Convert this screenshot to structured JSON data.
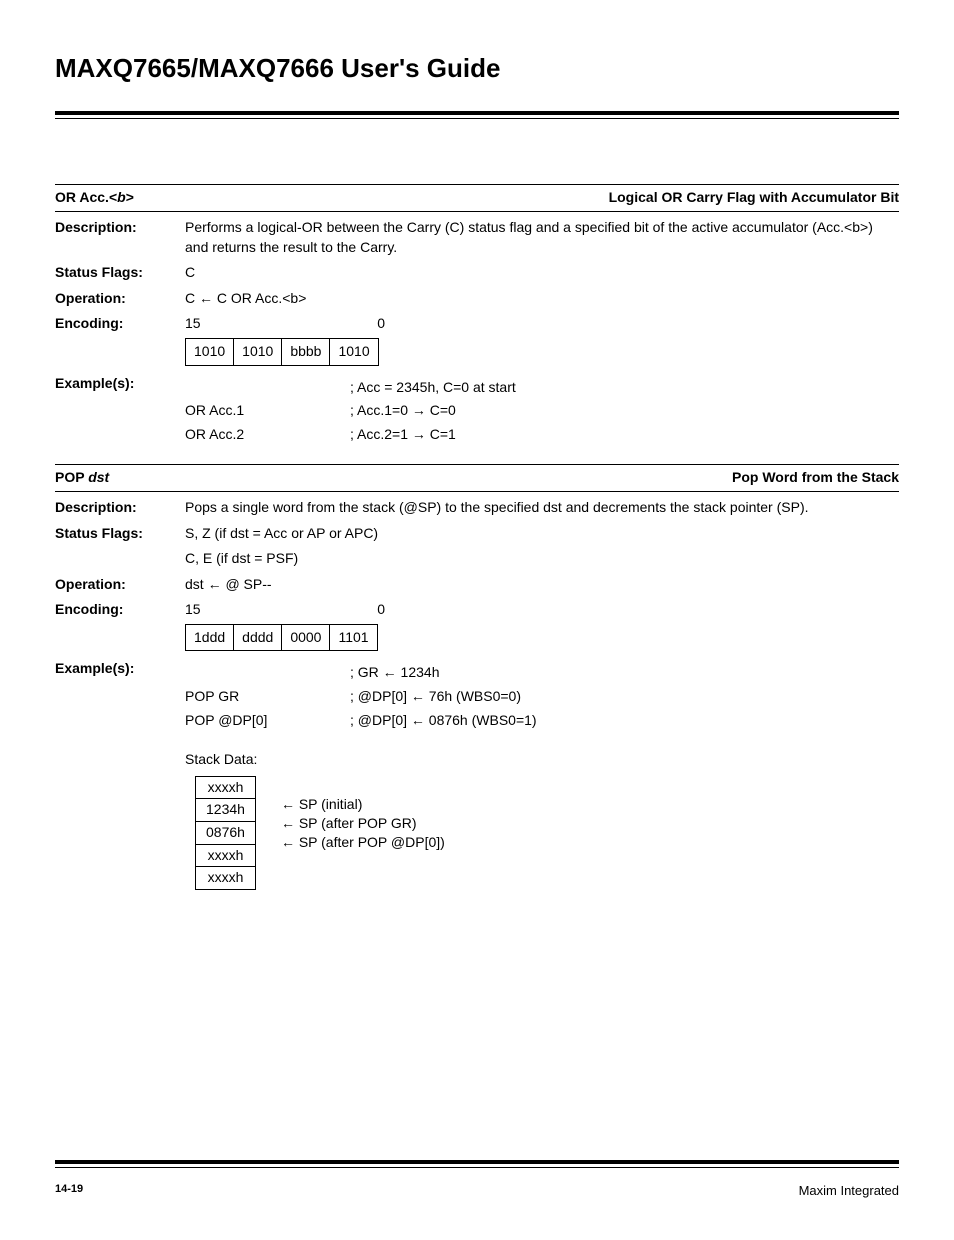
{
  "title": "MAXQ7665/MAXQ7666 User's Guide",
  "sections": [
    {
      "hdr_left_pre": "OR Acc.<",
      "hdr_left_b": "b",
      "hdr_left_post": ">",
      "hdr_right": "Logical OR Carry Flag with Accumulator Bit",
      "rows": [
        {
          "label": "Description:",
          "text": "Performs a logical-OR between the Carry (C) status flag and a specified bit of the active accumulator (Acc.<b>) and returns the result to the Carry."
        },
        {
          "label": "Status Flags:",
          "text": "C"
        },
        {
          "label": "Operation:",
          "text": "C ← C OR Acc.<b>"
        }
      ],
      "enc": {
        "label": "Encoding:",
        "hi": "15",
        "lo": "0",
        "cells": [
          "1010",
          "1010",
          "bbbb",
          "1010"
        ]
      },
      "examples_label": "Example(s):",
      "examples": [
        {
          "c1": "",
          "c2": "; Acc = 2345h, C=0 at start"
        },
        {
          "c1": "OR Acc.1",
          "c2": "; Acc.1=0   → C=0"
        },
        {
          "c1": "OR Acc.2",
          "c2": "; Acc.2=1   → C=1"
        }
      ]
    },
    {
      "hdr_left_pre": "POP ",
      "hdr_left_b": "dst",
      "hdr_left_post": "",
      "hdr_right": "Pop Word from the Stack",
      "rows": [
        {
          "label": "Description:",
          "text": "Pops a single word from the stack (@SP) to the specified dst and decrements the stack pointer (SP)."
        },
        {
          "label": "Status Flags:",
          "text": "S, Z  (if dst = Acc or AP or APC)"
        },
        {
          "label": "",
          "text": "C, E (if dst = PSF)"
        },
        {
          "label": "Operation:",
          "text": "dst ← @ SP--"
        }
      ],
      "enc": {
        "label": "Encoding:",
        "hi": "15",
        "lo": "0",
        "cells": [
          "1ddd",
          "dddd",
          "0000",
          "1101"
        ]
      },
      "examples_label": "Example(s):",
      "examples": [
        {
          "c1": "",
          "c2": "; GR ← 1234h"
        },
        {
          "c1": "POP GR",
          "c2": "; @DP[0] ← 76h (WBS0=0)"
        },
        {
          "c1": "POP @DP[0]",
          "c2": "; @DP[0] ← 0876h (WBS0=1)"
        }
      ],
      "stack_label": "Stack Data:",
      "stack_cells": [
        "xxxxh",
        "1234h",
        "0876h",
        "xxxxh",
        "xxxxh"
      ],
      "stack_notes": [
        "",
        "← SP (initial)",
        "← SP (after POP GR)",
        "← SP (after POP @DP[0])",
        ""
      ]
    }
  ],
  "footer": {
    "page": "14-19",
    "company": "Maxim Integrated"
  }
}
